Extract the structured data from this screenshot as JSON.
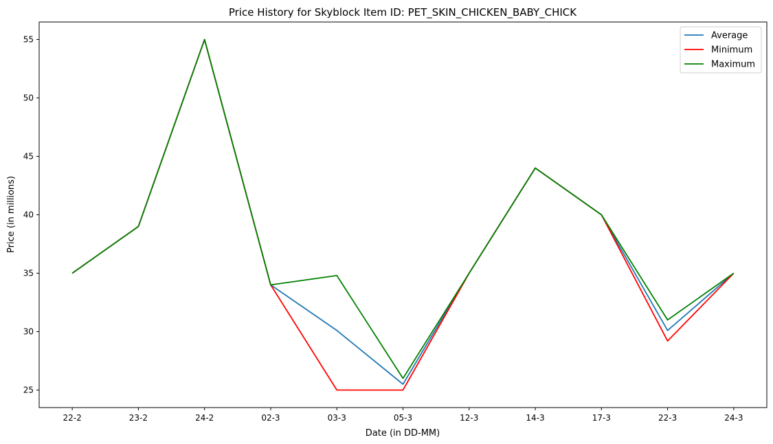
{
  "chart_data": {
    "type": "line",
    "title": "Price History for Skyblock Item ID: PET_SKIN_CHICKEN_BABY_CHICK",
    "xlabel": "Date (in DD-MM)",
    "ylabel": "Price (in millions)",
    "categories": [
      "22-2",
      "23-2",
      "24-2",
      "02-3",
      "03-3",
      "05-3",
      "12-3",
      "14-3",
      "17-3",
      "22-3",
      "24-3"
    ],
    "yticks": [
      "25",
      "30",
      "35",
      "40",
      "45",
      "50",
      "55"
    ],
    "ylim": [
      23.5,
      56.5
    ],
    "grid": false,
    "legend_position": "top-right",
    "series": [
      {
        "name": "Average",
        "color": "#1f77b4",
        "values": [
          35,
          39,
          55,
          34,
          30.1,
          25.5,
          35,
          44,
          40,
          30.1,
          35
        ]
      },
      {
        "name": "Minimum",
        "color": "#ff0000",
        "values": [
          35,
          39,
          55,
          34,
          25,
          25,
          35,
          44,
          40,
          29.2,
          35
        ]
      },
      {
        "name": "Maximum",
        "color": "#008000",
        "values": [
          35,
          39,
          55,
          34,
          34.8,
          26,
          35,
          44,
          40,
          31,
          35
        ]
      }
    ]
  }
}
